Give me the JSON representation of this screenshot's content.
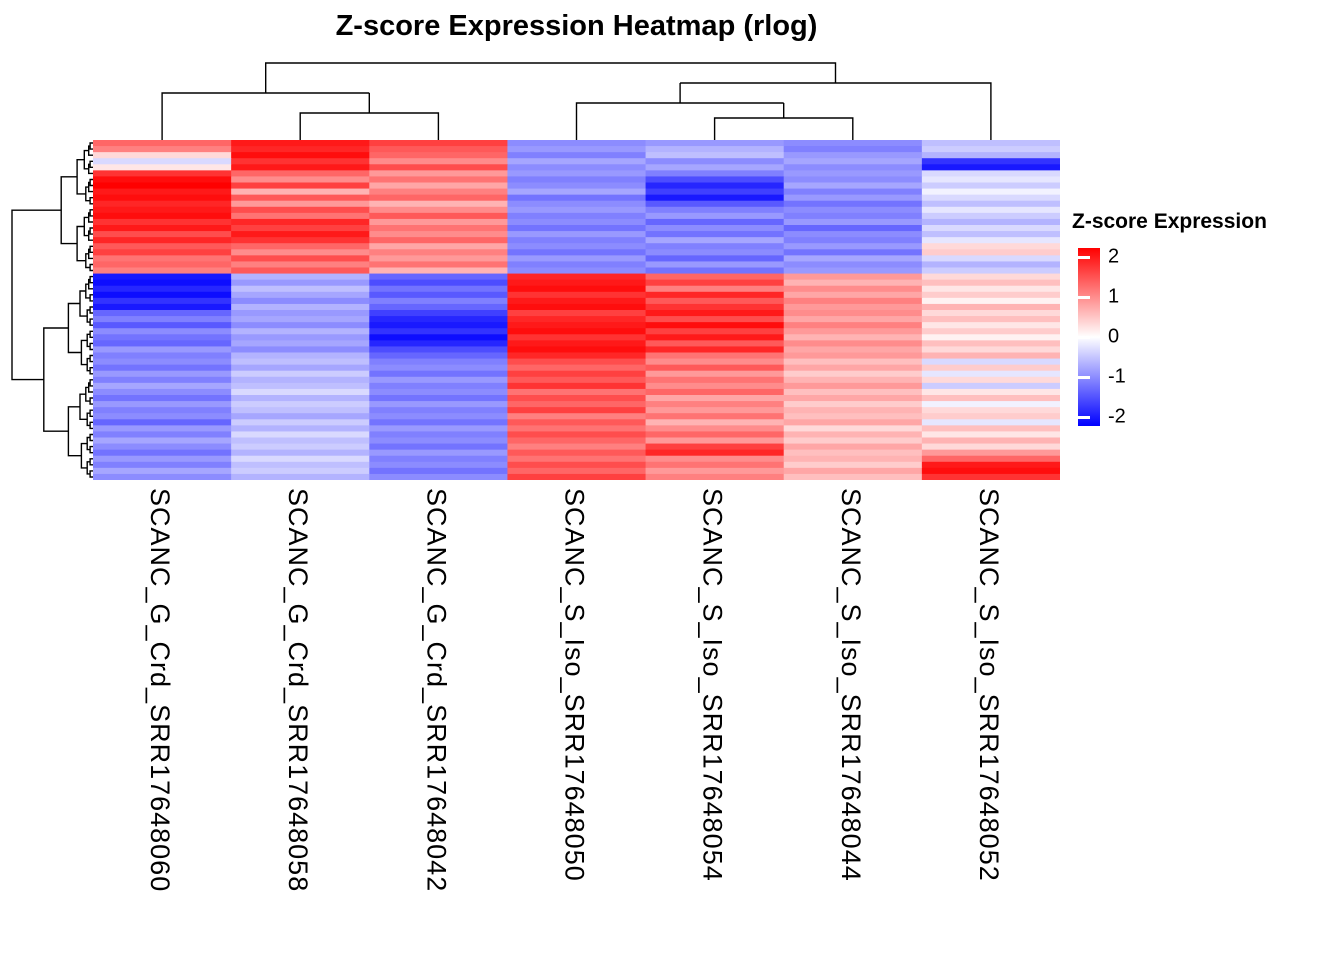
{
  "title": "Z-score Expression Heatmap (rlog)",
  "legend": {
    "title": "Z-score Expression",
    "ticks": [
      "2",
      "1",
      "0",
      "-1",
      "-2"
    ],
    "high_color": "#FF0000",
    "mid_color": "#FFFFFF",
    "low_color": "#0000FF"
  },
  "chart_data": {
    "type": "heatmap",
    "title": "Z-score Expression Heatmap (rlog)",
    "legend_title": "Z-score Expression",
    "zlim": [
      -2,
      2
    ],
    "colormap": "blue-white-red",
    "columns": [
      "SCANC_G_Crd_SRR17648060",
      "SCANC_G_Crd_SRR17648058",
      "SCANC_G_Crd_SRR17648042",
      "SCANC_S_Iso_SRR17648050",
      "SCANC_S_Iso_SRR17648054",
      "SCANC_S_Iso_SRR17648044",
      "SCANC_S_Iso_SRR17648052"
    ],
    "column_groups": [
      "G_Crd",
      "G_Crd",
      "G_Crd",
      "S_Iso",
      "S_Iso",
      "S_Iso",
      "S_Iso"
    ],
    "column_dendrogram_newick": "((SRR17648060,(SRR17648058,SRR17648042)),((SRR17648050,(SRR17648054,SRR17648044)),SRR17648052))",
    "row_note": "rows are unlabeled clustered genes; matrix below is a downsampled estimate read from the pixels",
    "matrix": [
      [
        1.2,
        1.8,
        1.5,
        -0.9,
        -0.8,
        -0.9,
        -0.5
      ],
      [
        1.0,
        1.7,
        1.3,
        -0.8,
        -0.6,
        -1.0,
        -0.4
      ],
      [
        0.3,
        1.9,
        1.2,
        -1.0,
        -0.5,
        -0.8,
        -0.6
      ],
      [
        -0.3,
        1.6,
        0.9,
        -0.7,
        -0.9,
        -0.7,
        -1.6
      ],
      [
        0.2,
        1.8,
        1.4,
        -0.9,
        -0.7,
        -0.9,
        -1.8
      ],
      [
        1.6,
        1.2,
        0.8,
        -0.8,
        -1.0,
        -0.8,
        -0.3
      ],
      [
        1.9,
        0.9,
        1.1,
        -1.0,
        -1.4,
        -0.9,
        -0.2
      ],
      [
        2.0,
        1.5,
        0.7,
        -0.9,
        -1.7,
        -0.7,
        -0.4
      ],
      [
        1.8,
        0.6,
        1.0,
        -0.7,
        -1.5,
        -1.0,
        -0.1
      ],
      [
        1.9,
        1.3,
        1.2,
        -1.1,
        -1.8,
        -0.8,
        -0.3
      ],
      [
        1.7,
        0.8,
        0.6,
        -0.9,
        -1.3,
        -1.1,
        -0.5
      ],
      [
        1.8,
        1.4,
        0.9,
        -0.8,
        -1.0,
        -0.9,
        -0.2
      ],
      [
        1.9,
        1.1,
        1.3,
        -1.0,
        -0.8,
        -1.0,
        -0.4
      ],
      [
        1.6,
        1.7,
        0.8,
        -0.9,
        -1.2,
        -0.8,
        -0.6
      ],
      [
        1.8,
        1.5,
        1.1,
        -1.1,
        -0.9,
        -1.2,
        -0.3
      ],
      [
        1.4,
        1.8,
        0.9,
        -0.8,
        -1.1,
        -0.9,
        -0.5
      ],
      [
        1.7,
        1.6,
        1.2,
        -1.0,
        -0.7,
        -1.0,
        -0.2
      ],
      [
        1.3,
        1.2,
        0.7,
        -0.9,
        -1.0,
        -0.8,
        0.3
      ],
      [
        1.5,
        0.9,
        1.0,
        -1.1,
        -0.9,
        -1.1,
        0.4
      ],
      [
        1.1,
        1.4,
        0.8,
        -0.8,
        -1.2,
        -0.7,
        -0.3
      ],
      [
        1.2,
        1.0,
        1.1,
        -1.0,
        -0.8,
        -0.9,
        -0.6
      ],
      [
        1.0,
        1.3,
        0.6,
        -0.9,
        -1.1,
        -0.8,
        -0.4
      ],
      [
        -1.8,
        -0.6,
        -1.2,
        1.7,
        1.2,
        0.8,
        0.3
      ],
      [
        -1.9,
        -0.8,
        -1.4,
        1.8,
        1.5,
        0.6,
        0.5
      ],
      [
        -1.7,
        -0.5,
        -1.1,
        1.9,
        1.0,
        0.9,
        0.2
      ],
      [
        -1.9,
        -0.7,
        -1.3,
        1.6,
        1.7,
        0.7,
        0.4
      ],
      [
        -1.6,
        -0.9,
        -1.0,
        1.8,
        1.3,
        1.0,
        0.1
      ],
      [
        -1.8,
        -0.6,
        -1.2,
        1.9,
        1.6,
        0.8,
        0.6
      ],
      [
        -1.2,
        -0.8,
        -1.5,
        1.5,
        1.8,
        0.9,
        0.3
      ],
      [
        -1.0,
        -0.7,
        -1.7,
        1.7,
        1.4,
        0.7,
        0.5
      ],
      [
        -1.3,
        -0.9,
        -1.8,
        1.8,
        1.9,
        1.0,
        0.2
      ],
      [
        -0.9,
        -0.6,
        -1.6,
        1.9,
        1.5,
        0.8,
        0.4
      ],
      [
        -1.1,
        -0.8,
        -1.9,
        1.6,
        1.8,
        0.6,
        0.1
      ],
      [
        -1.2,
        -0.7,
        -1.7,
        1.8,
        1.3,
        0.9,
        0.5
      ],
      [
        -0.8,
        -0.9,
        -1.4,
        1.9,
        1.7,
        0.7,
        0.3
      ],
      [
        -1.0,
        -0.6,
        -1.2,
        1.7,
        1.1,
        0.8,
        0.6
      ],
      [
        -0.9,
        -0.5,
        -1.0,
        1.4,
        0.9,
        0.5,
        -0.3
      ],
      [
        -1.1,
        -0.7,
        -0.9,
        1.2,
        1.3,
        0.7,
        0.4
      ],
      [
        -0.8,
        -0.4,
        -1.1,
        1.5,
        0.8,
        0.4,
        -0.2
      ],
      [
        -1.0,
        -0.6,
        -0.8,
        1.3,
        1.1,
        0.6,
        0.3
      ],
      [
        -0.7,
        -0.5,
        -1.0,
        1.6,
        0.9,
        0.8,
        -0.4
      ],
      [
        -0.9,
        -0.3,
        -0.9,
        1.1,
        1.2,
        0.5,
        0.2
      ],
      [
        -1.1,
        -0.6,
        -1.1,
        1.4,
        0.7,
        0.7,
        0.5
      ],
      [
        -0.8,
        -0.4,
        -0.8,
        1.2,
        1.0,
        0.4,
        -0.1
      ],
      [
        -1.0,
        -0.5,
        -1.0,
        1.5,
        0.8,
        0.6,
        0.3
      ],
      [
        -0.9,
        -0.7,
        -0.9,
        1.0,
        1.1,
        0.5,
        0.4
      ],
      [
        -1.2,
        -0.4,
        -1.1,
        1.3,
        0.6,
        0.7,
        -0.2
      ],
      [
        -0.8,
        -0.6,
        -0.8,
        1.1,
        0.9,
        0.3,
        0.5
      ],
      [
        -1.0,
        -0.3,
        -1.0,
        1.4,
        1.2,
        0.6,
        0.2
      ],
      [
        -0.7,
        -0.5,
        -0.9,
        1.2,
        0.8,
        0.4,
        0.6
      ],
      [
        -0.9,
        -0.4,
        -1.1,
        1.0,
        1.5,
        0.7,
        0.3
      ],
      [
        -1.1,
        -0.6,
        -0.8,
        1.3,
        1.7,
        0.5,
        0.8
      ],
      [
        -0.8,
        -0.3,
        -1.0,
        1.1,
        0.9,
        0.6,
        1.2
      ],
      [
        -1.0,
        -0.5,
        -0.9,
        1.4,
        1.1,
        0.4,
        1.8
      ],
      [
        -0.7,
        -0.4,
        -1.1,
        1.2,
        0.8,
        0.7,
        1.9
      ],
      [
        -0.9,
        -0.6,
        -0.9,
        1.5,
        1.0,
        0.5,
        1.6
      ]
    ]
  }
}
